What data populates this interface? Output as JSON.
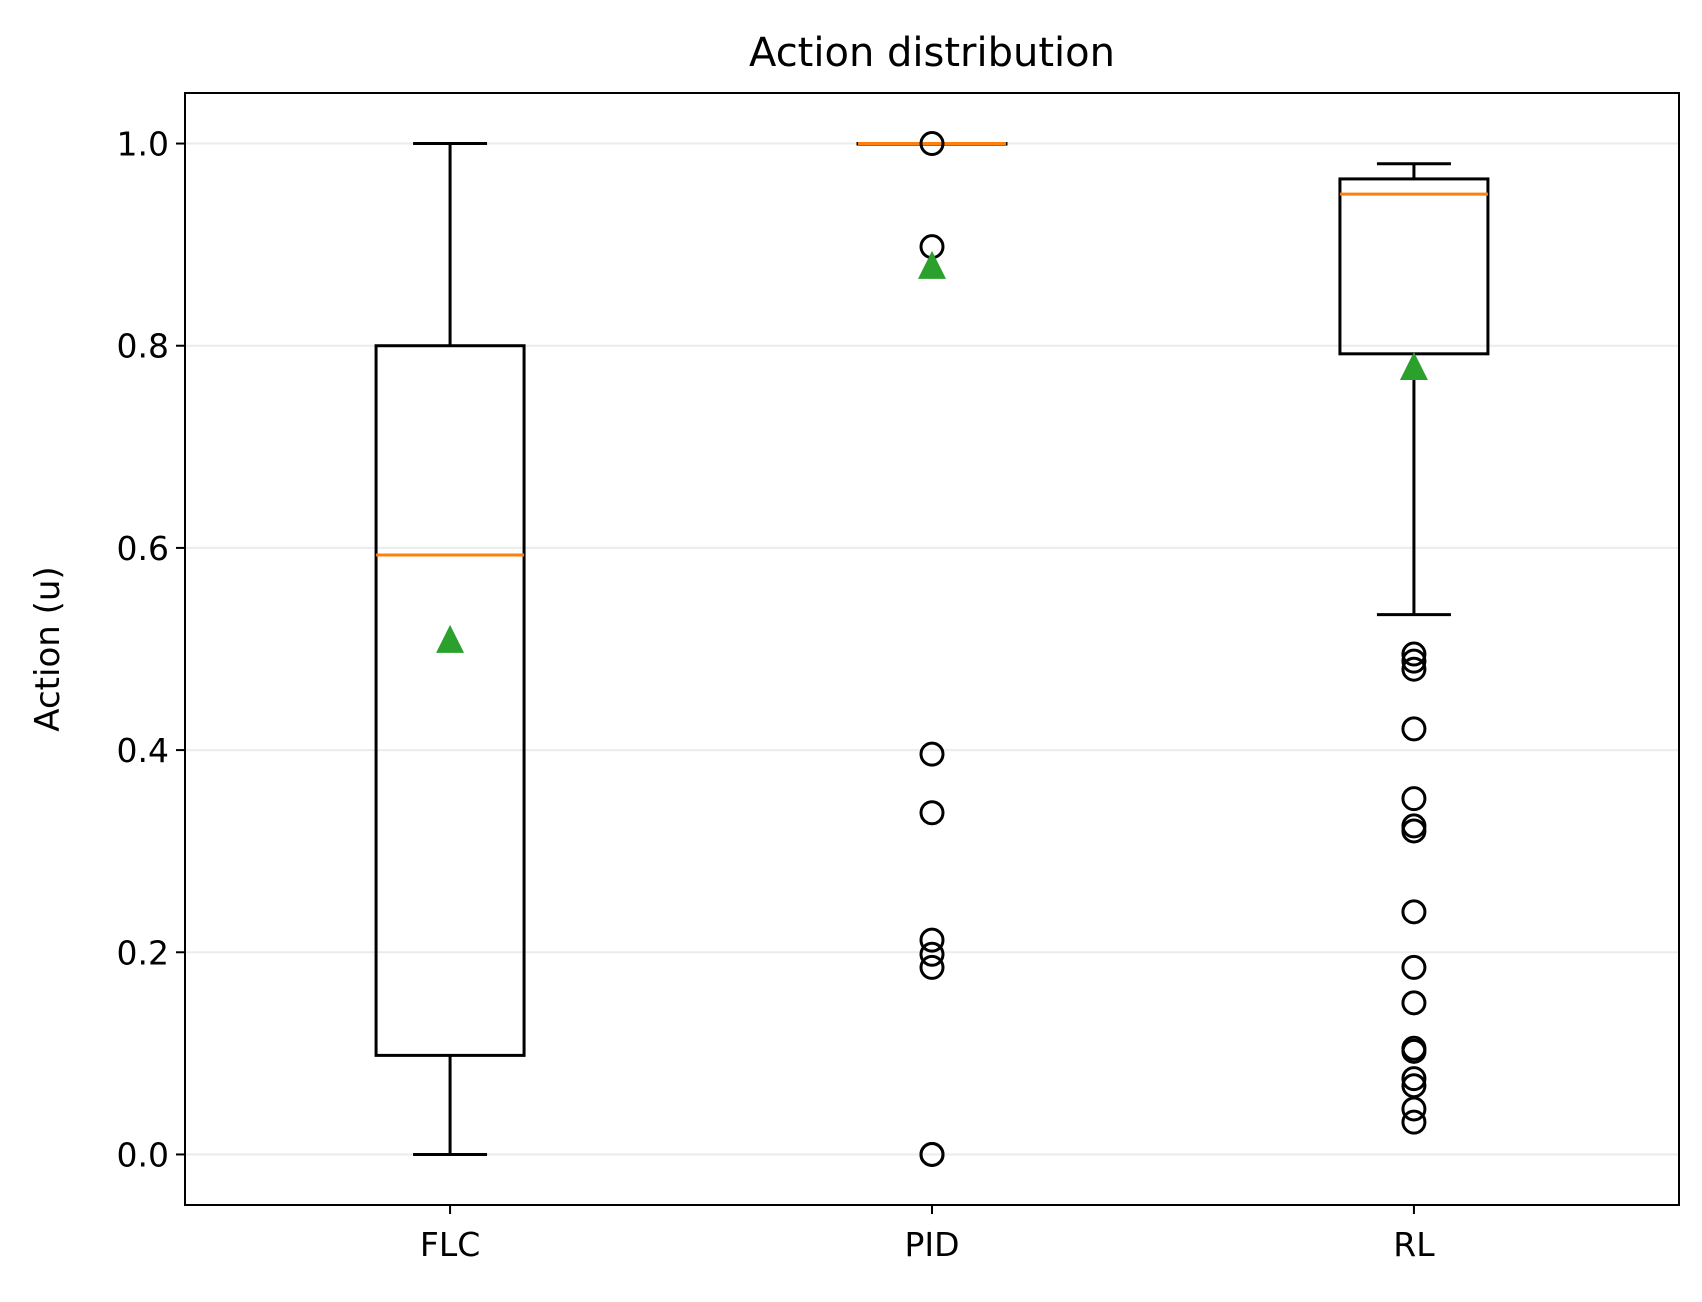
{
  "chart_data": {
    "type": "box",
    "title": "Action distribution",
    "xlabel": "",
    "ylabel": "Action (u)",
    "ylim": [
      -0.05,
      1.05
    ],
    "yticks": [
      0.0,
      0.2,
      0.4,
      0.6,
      0.8,
      1.0
    ],
    "ytick_labels": [
      "0.0",
      "0.2",
      "0.4",
      "0.6",
      "0.8",
      "1.0"
    ],
    "grid": {
      "y": true,
      "x": false
    },
    "categories": [
      "FLC",
      "PID",
      "RL"
    ],
    "boxes": [
      {
        "name": "FLC",
        "whisker_low": 0.0,
        "q1": 0.098,
        "median": 0.593,
        "q3": 0.8,
        "whisker_high": 1.0,
        "mean": 0.51,
        "outliers": []
      },
      {
        "name": "PID",
        "whisker_low": 1.0,
        "q1": 1.0,
        "median": 1.0,
        "q3": 1.0,
        "whisker_high": 1.0,
        "mean": 0.88,
        "outliers": [
          1.0,
          0.898,
          0.396,
          0.338,
          0.212,
          0.198,
          0.185,
          0.0,
          0.0
        ]
      },
      {
        "name": "RL",
        "whisker_low": 0.534,
        "q1": 0.792,
        "median": 0.95,
        "q3": 0.965,
        "whisker_high": 0.98,
        "mean": 0.78,
        "outliers": [
          0.495,
          0.488,
          0.48,
          0.421,
          0.352,
          0.325,
          0.32,
          0.24,
          0.185,
          0.15,
          0.105,
          0.102,
          0.075,
          0.068,
          0.045,
          0.032
        ]
      }
    ],
    "colors": {
      "box": "#000000",
      "median": "#ff7f0e",
      "mean": "#2ca02c",
      "grid": "#ebebeb"
    }
  }
}
